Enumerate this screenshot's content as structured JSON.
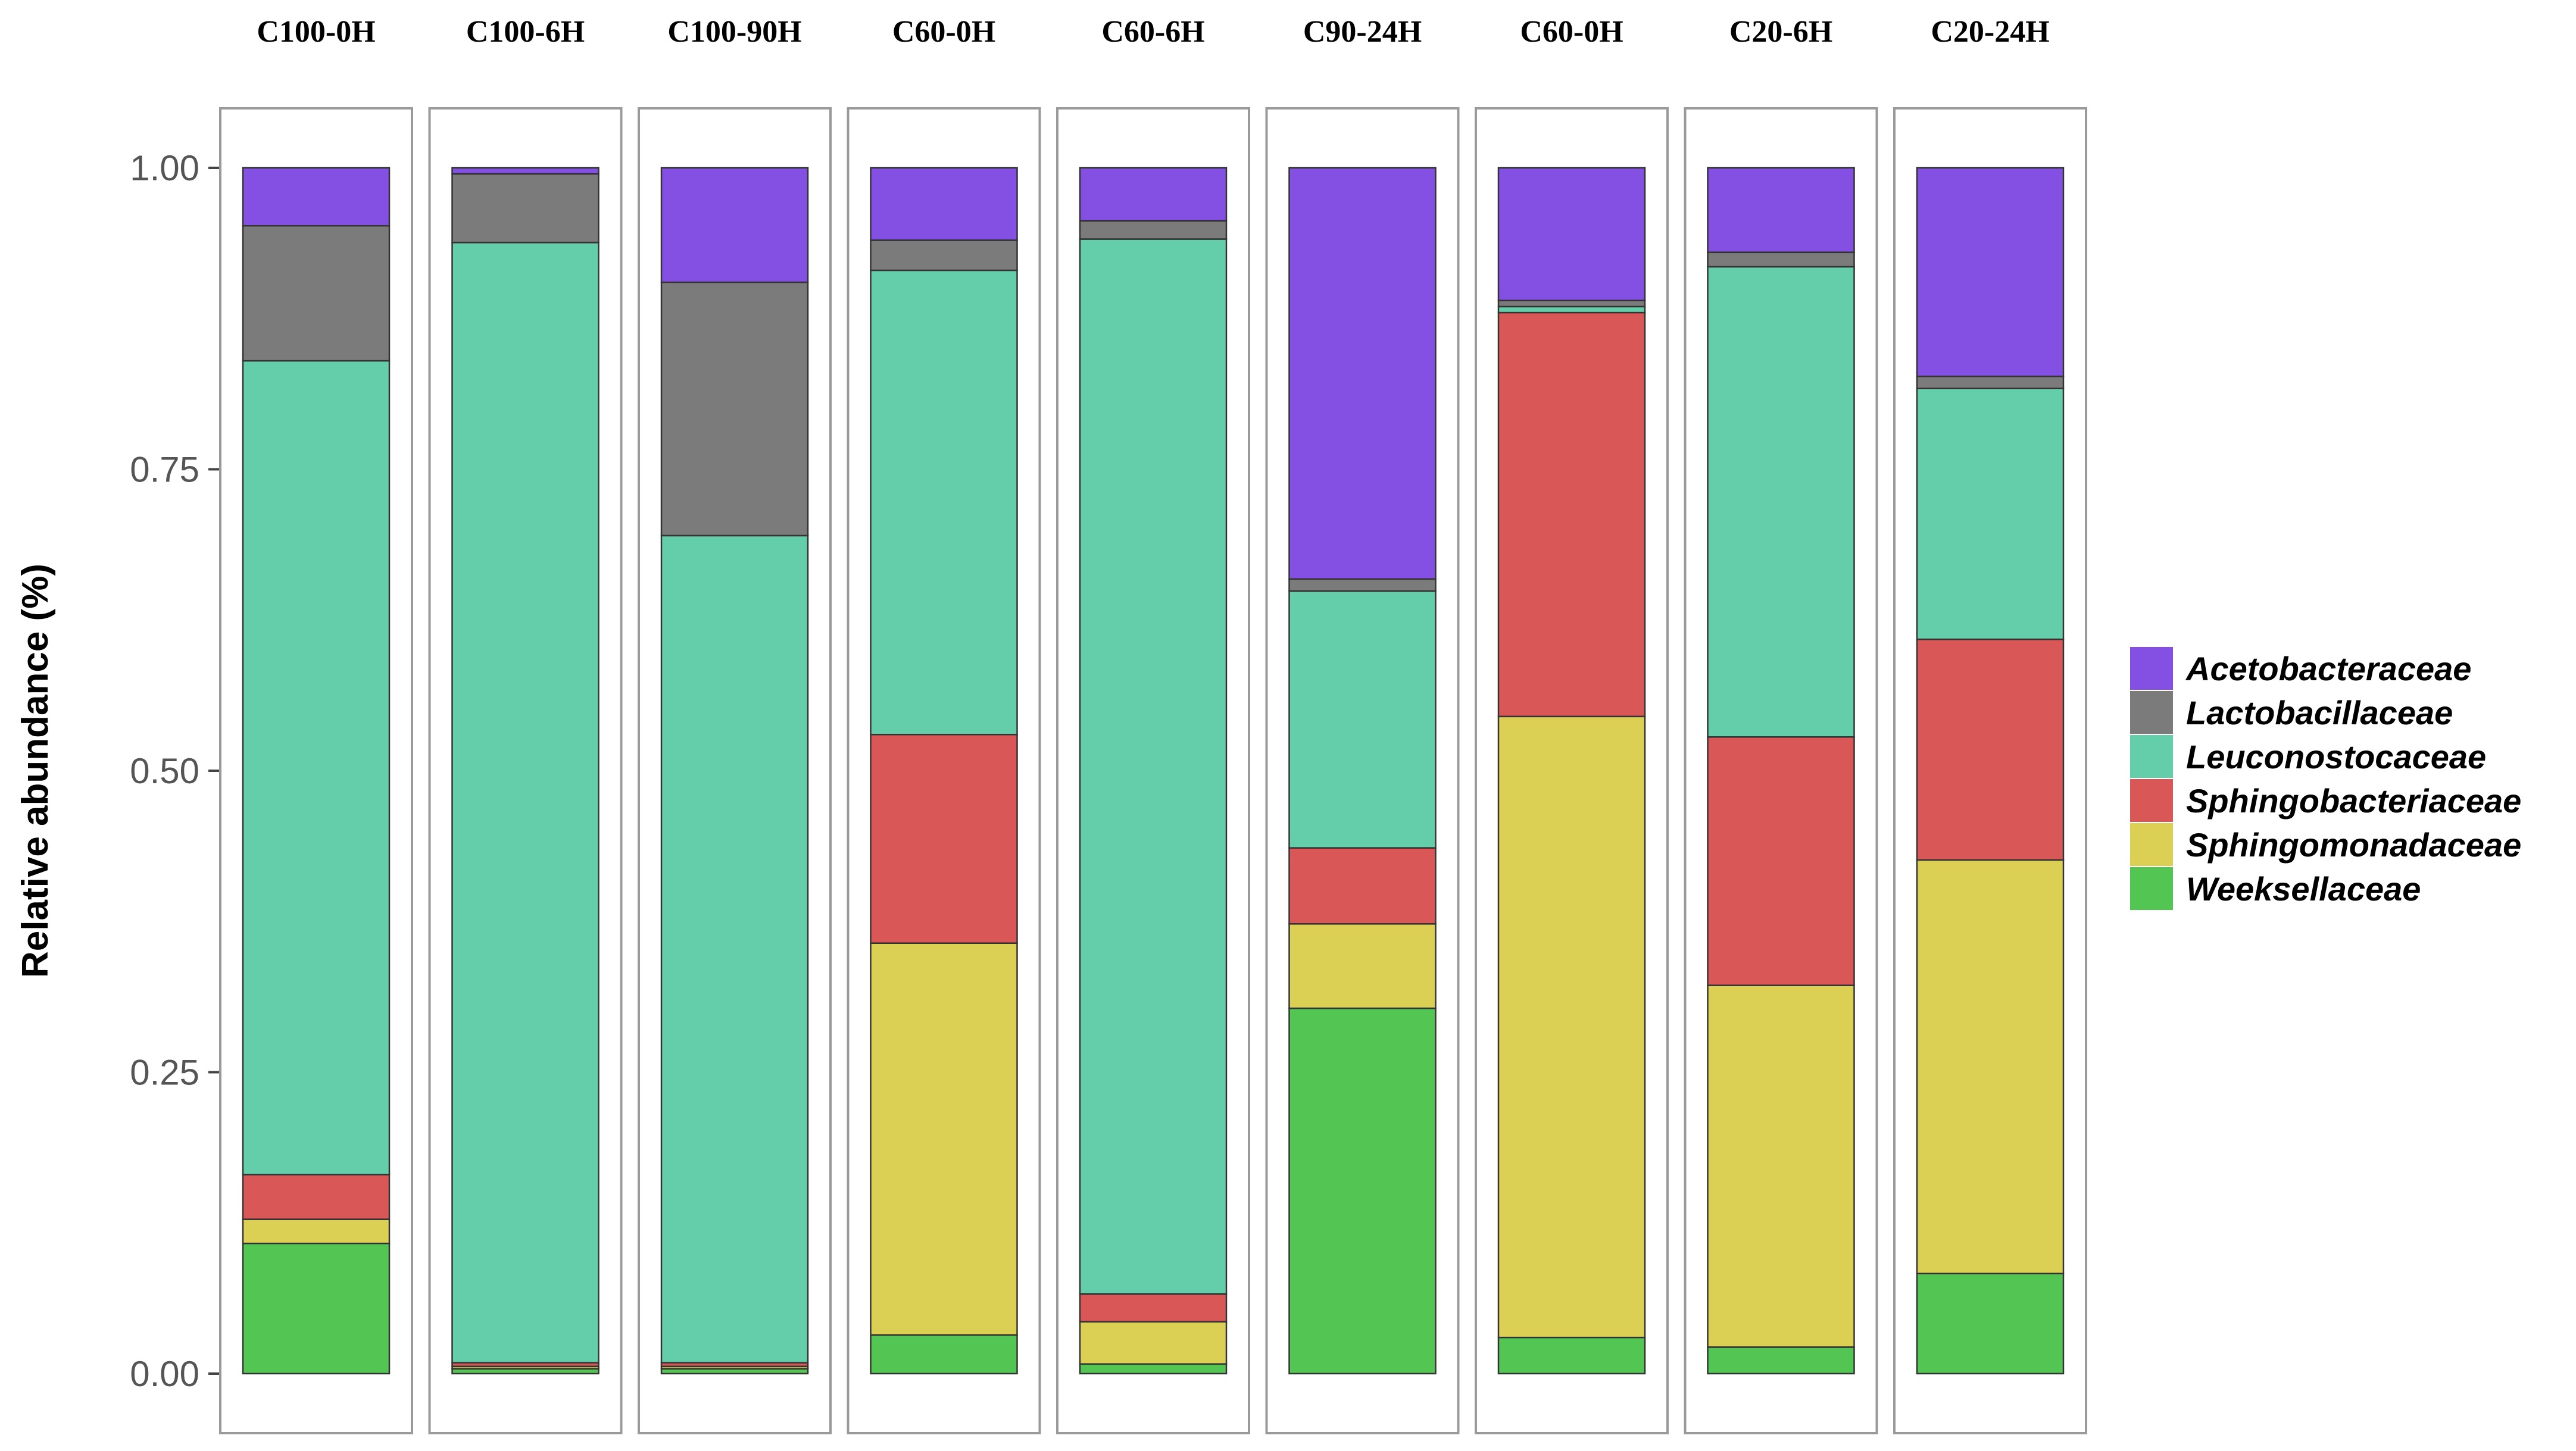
{
  "chart_data": {
    "type": "bar",
    "stacked": true,
    "ylabel": "Relative abundance (%)",
    "xlabel": "",
    "ylim": [
      0,
      1.0
    ],
    "yticks": [
      "0.00",
      "0.25",
      "0.50",
      "0.75",
      "1.00"
    ],
    "ytick_values": [
      0,
      0.25,
      0.5,
      0.75,
      1.0
    ],
    "categories": [
      "C100-0H",
      "C100-6H",
      "C100-90H",
      "C60-0H",
      "C60-6H",
      "C90-24H",
      "C60-0H",
      "C20-6H",
      "C20-24H"
    ],
    "legend_position": "right",
    "series": [
      {
        "name": "Weeksellaceae",
        "color": "#52C552",
        "values": [
          0.108,
          0.004,
          0.004,
          0.032,
          0.008,
          0.303,
          0.03,
          0.022,
          0.083
        ]
      },
      {
        "name": "Sphingomonadaceae",
        "color": "#DBD053",
        "values": [
          0.02,
          0.002,
          0.002,
          0.325,
          0.035,
          0.07,
          0.515,
          0.3,
          0.343
        ]
      },
      {
        "name": "Sphingobacteriaceae",
        "color": "#DA5757",
        "values": [
          0.037,
          0.003,
          0.003,
          0.173,
          0.023,
          0.063,
          0.335,
          0.206,
          0.183
        ]
      },
      {
        "name": "Leuconostocaceae",
        "color": "#64CDA9",
        "values": [
          0.675,
          0.929,
          0.686,
          0.385,
          0.875,
          0.213,
          0.005,
          0.39,
          0.208
        ]
      },
      {
        "name": "Lactobacillaceae",
        "color": "#7B7B7B",
        "values": [
          0.112,
          0.057,
          0.21,
          0.025,
          0.015,
          0.01,
          0.005,
          0.012,
          0.01
        ]
      },
      {
        "name": "Acetobacteraceae",
        "color": "#8450E3",
        "values": [
          0.048,
          0.005,
          0.095,
          0.06,
          0.044,
          0.341,
          0.11,
          0.07,
          0.173
        ]
      }
    ],
    "legend_order": [
      "Acetobacteraceae",
      "Lactobacillaceae",
      "Leuconostocaceae",
      "Sphingobacteriaceae",
      "Sphingomonadaceae",
      "Weeksellaceae"
    ]
  }
}
